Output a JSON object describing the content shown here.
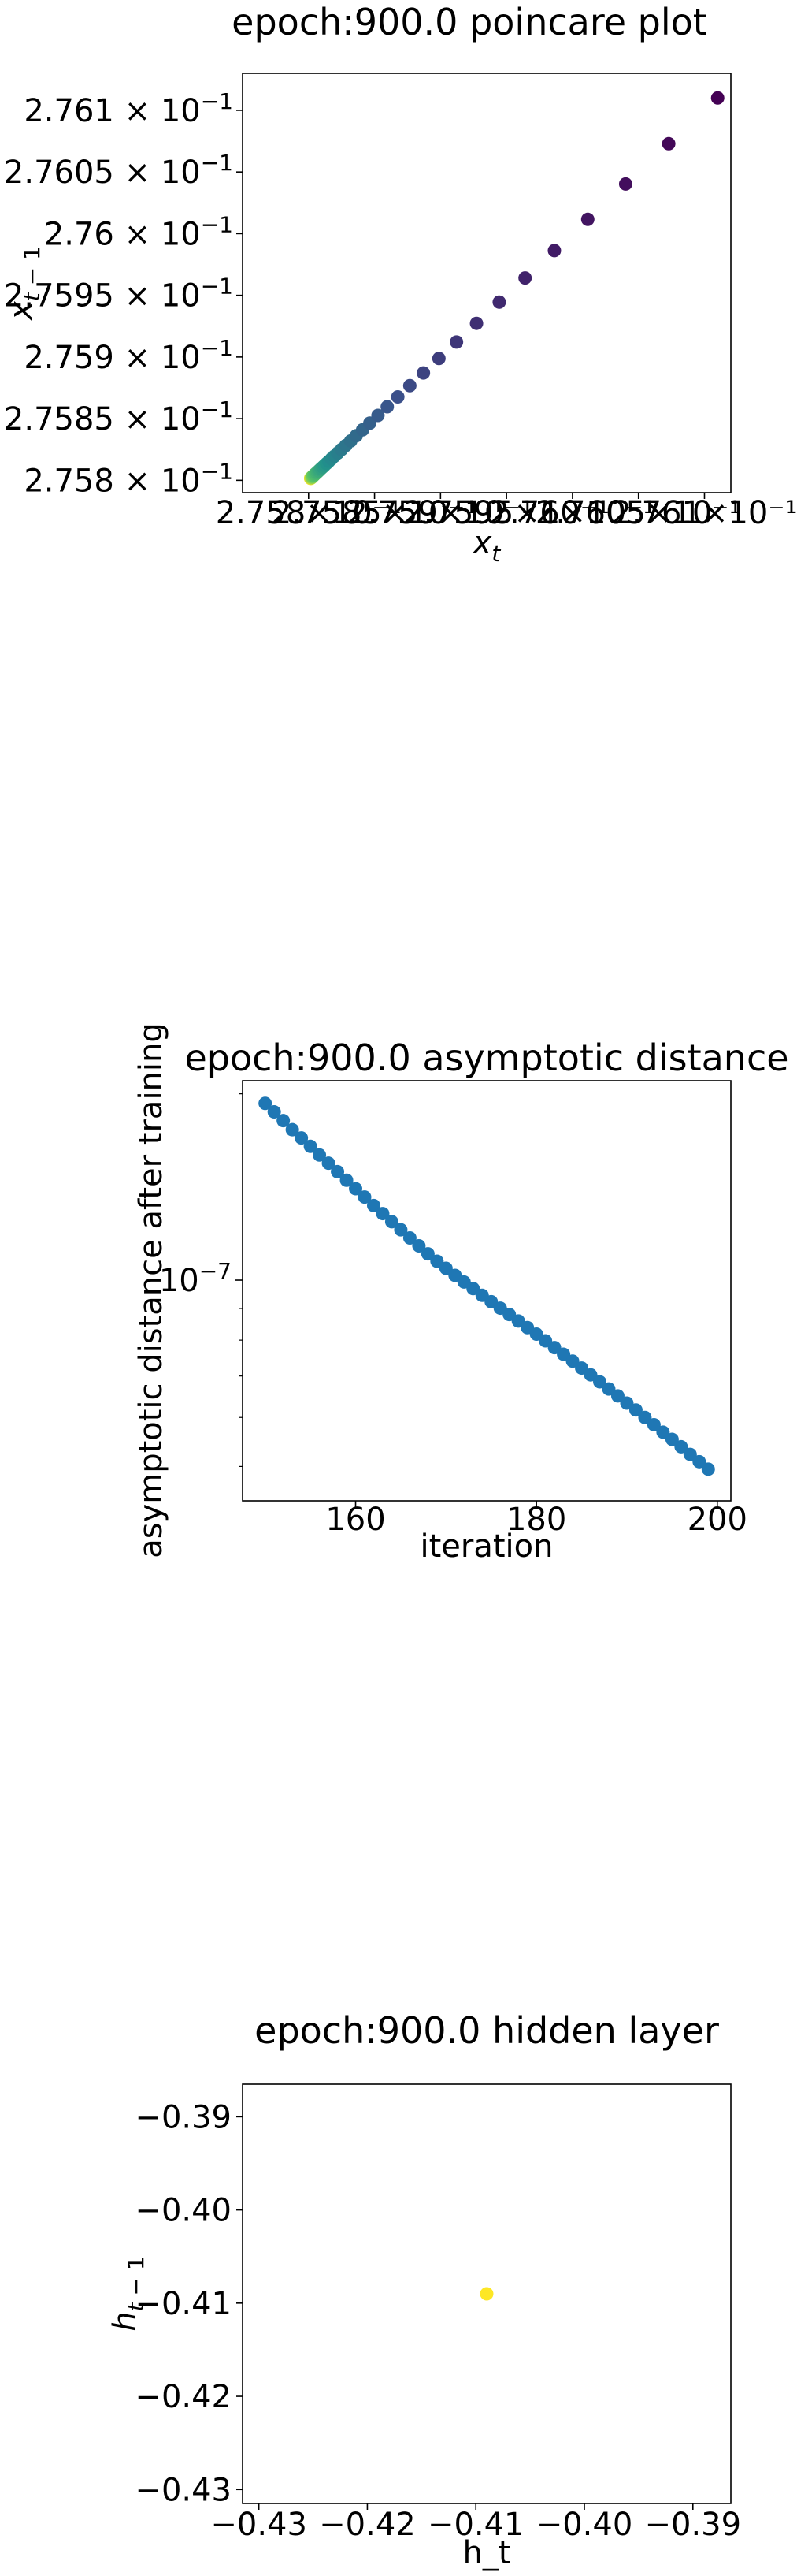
{
  "chart_data": [
    {
      "type": "scatter",
      "title": "epoch:900.0 poincare plot",
      "xlabel": "x_t",
      "ylabel": "x_{t-1}",
      "xlim": [
        0.27575,
        0.27612
      ],
      "ylim": [
        0.27579,
        0.27613
      ],
      "x_tick_labels": [
        "2.758×10⁻¹",
        "2.7585×10⁻¹",
        "2.759×10⁻¹",
        "2.7595×10⁻¹",
        "2.76×10⁻¹",
        "2.7605×10⁻¹",
        "2.761×10⁻¹"
      ],
      "y_ticks": [
        {
          "value": 0.2758,
          "mantissa": "2.758",
          "exponent": "−1"
        },
        {
          "value": 0.27585,
          "mantissa": "2.7585",
          "exponent": "−1"
        },
        {
          "value": 0.2759,
          "mantissa": "2.759",
          "exponent": "−1"
        },
        {
          "value": 0.27595,
          "mantissa": "2.7595",
          "exponent": "−1"
        },
        {
          "value": 0.276,
          "mantissa": "2.76",
          "exponent": "−1"
        },
        {
          "value": 0.27605,
          "mantissa": "2.7605",
          "exponent": "−1"
        },
        {
          "value": 0.2761,
          "mantissa": "2.761",
          "exponent": "−1"
        }
      ],
      "x_tick_values": [
        0.2758,
        0.27585,
        0.2759,
        0.27595,
        0.276,
        0.27605,
        0.2761
      ],
      "colormap": "viridis",
      "points_first": [
        0.27611,
        0.27611
      ],
      "points_decay": 0.88,
      "points_limit": [
        0.275801,
        0.275801
      ],
      "points_count": 50,
      "grid": false
    },
    {
      "type": "scatter",
      "title": "epoch:900.0 asymptotic distance",
      "xlabel": "iteration",
      "ylabel": "asymptotic distance after training",
      "yscale": "log",
      "xlim": [
        147.5,
        201.5
      ],
      "ylim": [
        4.4e-08,
        2.1e-07
      ],
      "x_ticks": [
        160,
        180,
        200
      ],
      "y_tick_label": {
        "value": 1e-07,
        "mantissa": "10",
        "exponent": "−7"
      },
      "color": "#1f77b4",
      "x": [
        150,
        151,
        152,
        153,
        154,
        155,
        156,
        157,
        158,
        159,
        160,
        161,
        162,
        163,
        164,
        165,
        166,
        167,
        168,
        169,
        170,
        171,
        172,
        173,
        174,
        175,
        176,
        177,
        178,
        179,
        180,
        181,
        182,
        183,
        184,
        185,
        186,
        187,
        188,
        189,
        190,
        191,
        192,
        193,
        194,
        195,
        196,
        197,
        198,
        199
      ],
      "y": [
        1.93e-07,
        1.87e-07,
        1.81e-07,
        1.75e-07,
        1.697e-07,
        1.645e-07,
        1.593e-07,
        1.545e-07,
        1.497e-07,
        1.45e-07,
        1.405e-07,
        1.362e-07,
        1.32e-07,
        1.281e-07,
        1.243e-07,
        1.206e-07,
        1.17e-07,
        1.136e-07,
        1.103e-07,
        1.073e-07,
        1.045e-07,
        1.018e-07,
        9.93e-08,
        9.69e-08,
        9.45e-08,
        9.23e-08,
        9.01e-08,
        8.8e-08,
        8.59e-08,
        8.38e-08,
        8.18e-08,
        7.98e-08,
        7.78e-08,
        7.59e-08,
        7.4e-08,
        7.21e-08,
        7.03e-08,
        6.85e-08,
        6.67e-08,
        6.5e-08,
        6.33e-08,
        6.17e-08,
        6e-08,
        5.84e-08,
        5.68e-08,
        5.53e-08,
        5.38e-08,
        5.23e-08,
        5.09e-08,
        4.95e-08
      ],
      "grid": false
    },
    {
      "type": "scatter",
      "title": "epoch:900.0 hidden layer",
      "xlabel": "h_t",
      "ylabel": "h_{t-1}",
      "xlim": [
        -0.4315,
        -0.3865
      ],
      "ylim": [
        -0.4315,
        -0.3865
      ],
      "x_ticks": [
        -0.43,
        -0.42,
        -0.41,
        -0.4,
        -0.39
      ],
      "x_tick_labels": [
        "−0.43",
        "−0.42",
        "−0.41",
        "−0.40",
        "−0.39"
      ],
      "y_ticks": [
        -0.43,
        -0.42,
        -0.41,
        -0.4,
        -0.39
      ],
      "y_tick_labels": [
        "−0.43",
        "−0.42",
        "−0.41",
        "−0.40",
        "−0.39"
      ],
      "color": "#fde725",
      "x": [
        -0.409
      ],
      "y": [
        -0.409
      ],
      "grid": false
    }
  ]
}
